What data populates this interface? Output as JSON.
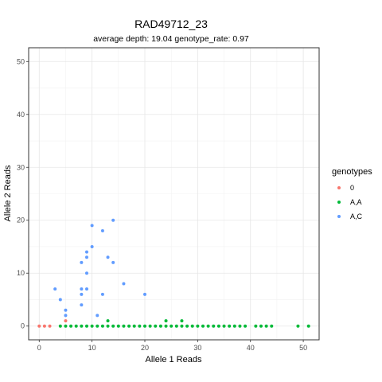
{
  "chart_data": {
    "type": "scatter",
    "title": "RAD49712_23",
    "subtitle": "average depth:  19.04  genotype_rate:  0.97",
    "xlabel": "Allele 1 Reads",
    "ylabel": "Allele 2 Reads",
    "xlim": [
      -2,
      53
    ],
    "ylim": [
      -2.6,
      52.6
    ],
    "xticks": [
      0,
      10,
      20,
      30,
      40,
      50
    ],
    "yticks": [
      0,
      10,
      20,
      30,
      40,
      50
    ],
    "grid": true,
    "legend": {
      "title": "genotypes",
      "placement": "right"
    },
    "series": [
      {
        "name": "0",
        "color": "#F8766D",
        "points": [
          [
            0,
            0
          ],
          [
            1,
            0
          ],
          [
            2,
            0
          ],
          [
            5,
            1
          ]
        ]
      },
      {
        "name": "A,A",
        "color": "#00BA38",
        "points": [
          [
            4,
            0
          ],
          [
            5,
            0
          ],
          [
            6,
            0
          ],
          [
            7,
            0
          ],
          [
            8,
            0
          ],
          [
            9,
            0
          ],
          [
            10,
            0
          ],
          [
            11,
            0
          ],
          [
            12,
            0
          ],
          [
            13,
            0
          ],
          [
            14,
            0
          ],
          [
            15,
            0
          ],
          [
            16,
            0
          ],
          [
            17,
            0
          ],
          [
            18,
            0
          ],
          [
            19,
            0
          ],
          [
            20,
            0
          ],
          [
            21,
            0
          ],
          [
            22,
            0
          ],
          [
            23,
            0
          ],
          [
            24,
            0
          ],
          [
            25,
            0
          ],
          [
            26,
            0
          ],
          [
            27,
            0
          ],
          [
            28,
            0
          ],
          [
            29,
            0
          ],
          [
            30,
            0
          ],
          [
            31,
            0
          ],
          [
            32,
            0
          ],
          [
            33,
            0
          ],
          [
            34,
            0
          ],
          [
            35,
            0
          ],
          [
            36,
            0
          ],
          [
            37,
            0
          ],
          [
            38,
            0
          ],
          [
            39,
            0
          ],
          [
            41,
            0
          ],
          [
            42,
            0
          ],
          [
            43,
            0
          ],
          [
            44,
            0
          ],
          [
            49,
            0
          ],
          [
            51,
            0
          ],
          [
            13,
            1
          ],
          [
            24,
            1
          ],
          [
            27,
            1
          ]
        ]
      },
      {
        "name": "A,C",
        "color": "#619CFF",
        "points": [
          [
            3,
            7
          ],
          [
            4,
            5
          ],
          [
            5,
            2
          ],
          [
            5,
            3
          ],
          [
            8,
            4
          ],
          [
            8,
            6
          ],
          [
            8,
            7
          ],
          [
            8,
            12
          ],
          [
            9,
            7
          ],
          [
            9,
            10
          ],
          [
            9,
            13
          ],
          [
            9,
            14
          ],
          [
            10,
            15
          ],
          [
            10,
            19
          ],
          [
            11,
            2
          ],
          [
            12,
            6
          ],
          [
            12,
            18
          ],
          [
            13,
            13
          ],
          [
            14,
            12
          ],
          [
            14,
            20
          ],
          [
            16,
            8
          ],
          [
            20,
            6
          ]
        ]
      }
    ]
  }
}
